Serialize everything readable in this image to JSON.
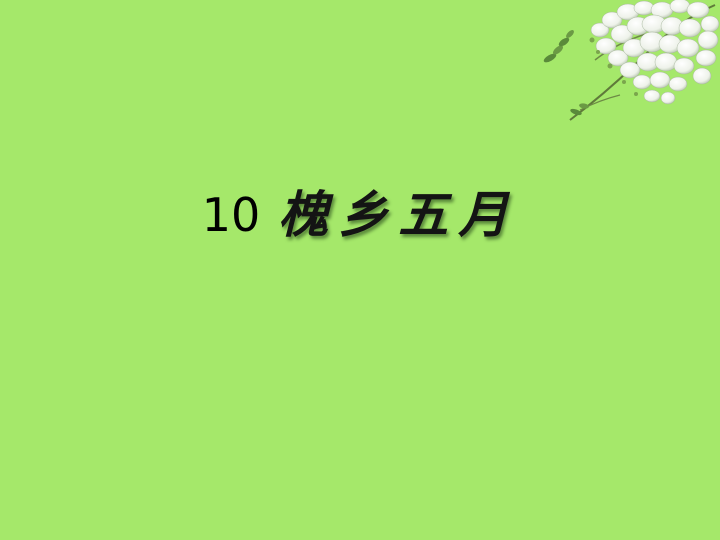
{
  "slide": {
    "number": "10",
    "title": "槐乡五月"
  },
  "colors": {
    "background": "#a5e86a",
    "title": "#141414"
  },
  "decoration": {
    "icon": "locust-blossom-flower-icon"
  }
}
